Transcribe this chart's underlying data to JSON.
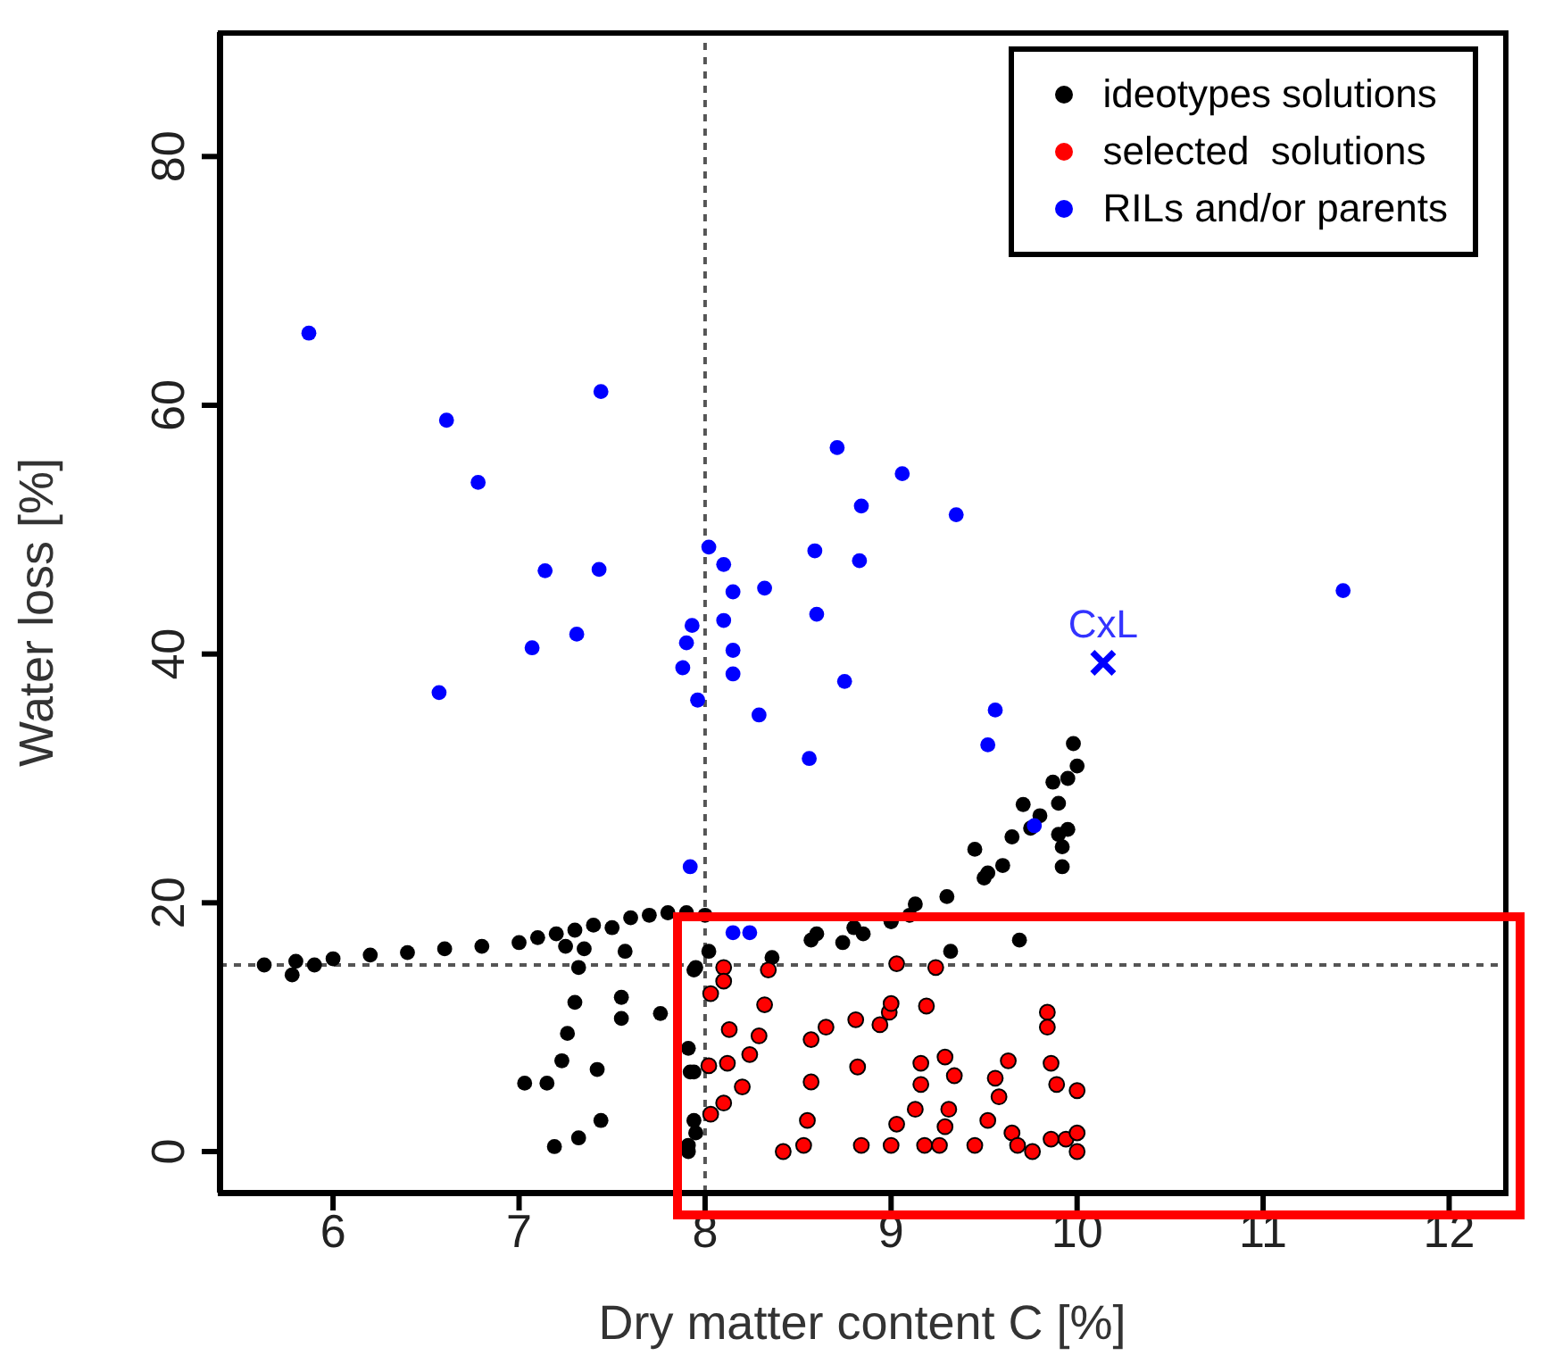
{
  "chart_data": {
    "type": "scatter",
    "xlabel": "Dry matter content C [%]",
    "ylabel": "Water loss [%]",
    "xlim": [
      5.39,
      12.3
    ],
    "ylim": [
      -3.3,
      90
    ],
    "xticks": [
      6,
      7,
      8,
      9,
      10,
      11,
      12
    ],
    "yticks": [
      0,
      20,
      40,
      60,
      80
    ],
    "legend": "top right",
    "marker": "circle",
    "ref_lines": [
      {
        "axis": "x",
        "value": 8,
        "line_style": "dotted",
        "color": "#555555"
      },
      {
        "axis": "y",
        "value": 15,
        "line_style": "dotted",
        "color": "#555555"
      }
    ],
    "annotations": [
      {
        "text": "CxL",
        "x": 10.14,
        "y": 39.3
      }
    ],
    "series": [
      {
        "name": "ideotypes solutions",
        "color": "#000000",
        "x": [
          5.63,
          5.78,
          5.8,
          5.9,
          6.0,
          6.2,
          6.4,
          6.6,
          6.8,
          7.0,
          7.1,
          7.2,
          7.25,
          7.3,
          7.35,
          7.4,
          7.5,
          7.6,
          7.7,
          7.8,
          7.9,
          8.0,
          7.3,
          7.26,
          7.55,
          7.55,
          7.76,
          7.42,
          7.23,
          7.03,
          7.15,
          7.19,
          7.32,
          7.44,
          7.32,
          7.57,
          7.94,
          7.91,
          7.92,
          7.91,
          7.94,
          7.91,
          7.95,
          7.94,
          8.02,
          7.95,
          8.36,
          8.57,
          8.74,
          8.85,
          9.0,
          9.1,
          9.32,
          9.69,
          8.6,
          8.8,
          9.0,
          9.13,
          9.3,
          9.45,
          9.52,
          9.5,
          9.65,
          9.6,
          9.71,
          9.75,
          9.8,
          9.87,
          9.9,
          9.95,
          9.98,
          10.0,
          9.92,
          9.92,
          9.9,
          9.95
        ],
        "values": [
          15.0,
          14.2,
          15.3,
          15.0,
          15.5,
          15.8,
          16.0,
          16.3,
          16.5,
          16.8,
          17.2,
          17.5,
          16.5,
          17.8,
          16.3,
          18.2,
          18.0,
          18.8,
          19.0,
          19.2,
          19.2,
          19.0,
          12.0,
          9.5,
          12.4,
          10.7,
          11.1,
          6.6,
          7.3,
          5.5,
          5.5,
          0.4,
          1.1,
          2.5,
          14.8,
          16.1,
          14.6,
          8.3,
          6.4,
          0.5,
          2.5,
          0.0,
          1.5,
          6.4,
          16.1,
          14.8,
          15.6,
          17.0,
          16.8,
          17.5,
          18.5,
          19.0,
          16.1,
          17.0,
          17.5,
          18.0,
          18.5,
          19.9,
          20.5,
          24.3,
          22.4,
          22.0,
          25.3,
          23.0,
          27.9,
          26.0,
          27.0,
          29.7,
          28.0,
          30.0,
          32.8,
          31.0,
          22.9,
          24.5,
          25.5,
          25.9
        ]
      },
      {
        "name": "selected  solutions",
        "color": "#ff0000",
        "x": [
          8.1,
          8.03,
          8.02,
          8.12,
          8.13,
          8.34,
          8.32,
          8.29,
          8.24,
          8.2,
          8.1,
          8.03,
          8.57,
          8.65,
          8.57,
          8.55,
          8.53,
          8.42,
          8.82,
          8.81,
          8.94,
          8.99,
          9.0,
          9.03,
          9.24,
          9.19,
          8.84,
          9.0,
          9.16,
          9.16,
          9.13,
          9.03,
          9.18,
          9.26,
          9.29,
          9.34,
          9.31,
          9.29,
          9.45,
          9.52,
          9.58,
          9.63,
          9.56,
          9.65,
          9.68,
          9.76,
          9.84,
          9.84,
          9.86,
          9.89,
          10.0,
          9.86,
          9.94,
          10.0,
          10.0,
          8.1
        ],
        "values": [
          14.8,
          12.7,
          6.9,
          7.1,
          9.8,
          14.6,
          11.8,
          9.3,
          7.8,
          5.2,
          3.9,
          3.0,
          9.0,
          10.0,
          5.6,
          2.5,
          0.5,
          0.0,
          6.8,
          10.6,
          10.2,
          11.2,
          11.9,
          15.1,
          14.8,
          11.7,
          0.5,
          0.5,
          7.1,
          5.4,
          3.4,
          2.2,
          0.5,
          0.5,
          7.6,
          6.1,
          3.4,
          2.0,
          0.5,
          2.5,
          4.4,
          7.3,
          5.9,
          1.5,
          0.5,
          0.0,
          11.2,
          10.0,
          7.1,
          5.4,
          4.9,
          1.0,
          1.0,
          1.5,
          0.0,
          13.7
        ]
      },
      {
        "name": "RILs and/or parents",
        "color": "#0000ff",
        "x": [
          5.87,
          7.44,
          6.61,
          6.78,
          8.71,
          8.84,
          8.02,
          8.59,
          8.83,
          8.1,
          7.14,
          7.43,
          8.15,
          8.32,
          8.1,
          8.6,
          7.93,
          7.9,
          7.31,
          7.07,
          8.15,
          7.88,
          8.15,
          8.75,
          6.57,
          7.96,
          8.29,
          8.56,
          9.06,
          9.35,
          11.43,
          9.56,
          9.52,
          9.77,
          7.92,
          8.15,
          8.24
        ],
        "values": [
          65.8,
          61.1,
          58.8,
          53.8,
          56.6,
          51.9,
          48.6,
          48.3,
          47.5,
          47.2,
          46.7,
          46.8,
          45.0,
          45.3,
          42.7,
          43.2,
          42.3,
          40.9,
          41.6,
          40.5,
          40.3,
          38.9,
          38.4,
          37.8,
          36.9,
          36.3,
          35.1,
          31.6,
          54.5,
          51.2,
          45.1,
          35.5,
          32.7,
          26.2,
          22.9,
          17.6,
          17.6
        ]
      },
      {
        "color": "#0000ff",
        "marker": "cross",
        "x": [
          10.14
        ],
        "values": [
          39.3
        ]
      }
    ]
  }
}
